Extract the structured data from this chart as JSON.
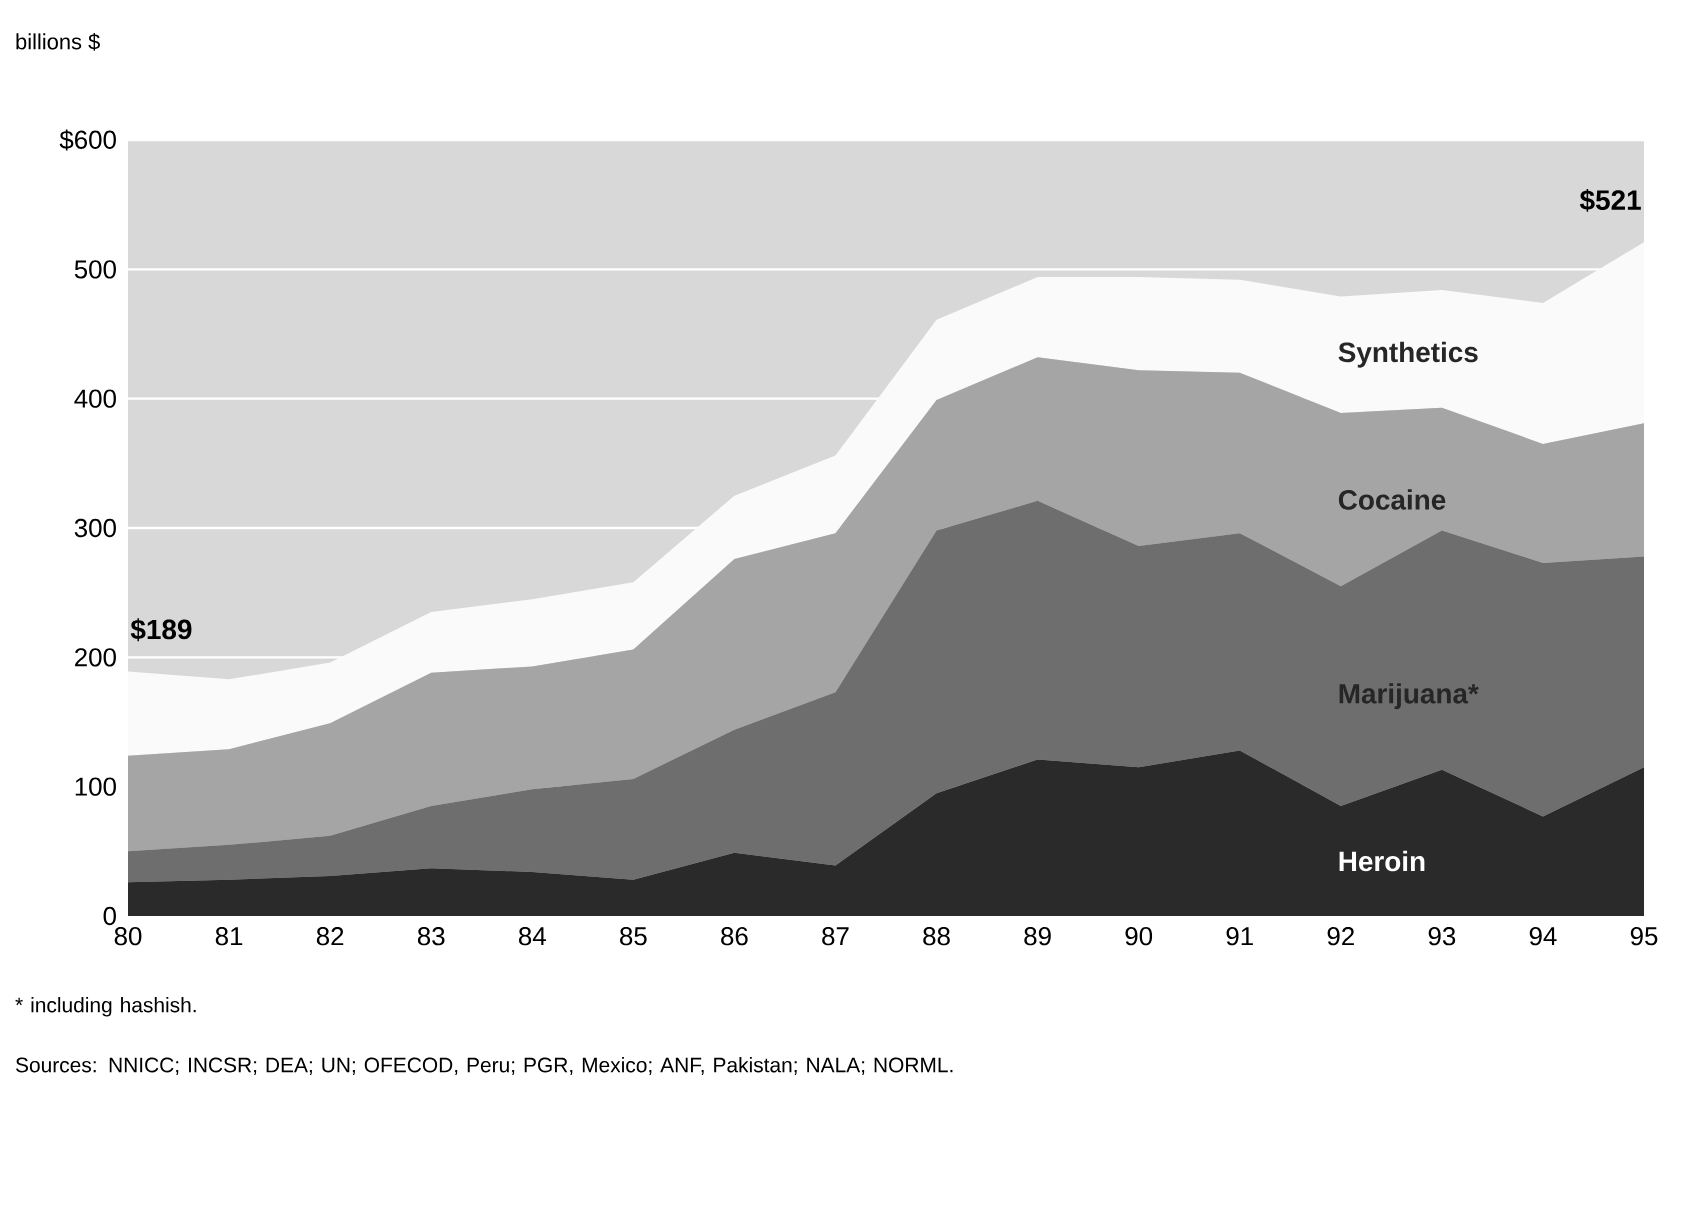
{
  "chart_data": {
    "type": "area",
    "stacked": true,
    "ylabel": "billions $",
    "categories": [
      "80",
      "81",
      "82",
      "83",
      "84",
      "85",
      "86",
      "87",
      "88",
      "89",
      "90",
      "91",
      "92",
      "93",
      "94",
      "95"
    ],
    "series": [
      {
        "name": "Heroin",
        "color": "#2a2a2a",
        "values": [
          26,
          28,
          31,
          37,
          34,
          28,
          49,
          39,
          95,
          121,
          115,
          128,
          85,
          113,
          77,
          115
        ]
      },
      {
        "name": "Marijuana*",
        "color": "#6e6e6e",
        "values": [
          24,
          27,
          31,
          48,
          64,
          78,
          95,
          134,
          203,
          200,
          171,
          168,
          170,
          185,
          196,
          163
        ]
      },
      {
        "name": "Cocaine",
        "color": "#a5a5a5",
        "values": [
          74,
          74,
          87,
          103,
          95,
          100,
          132,
          123,
          101,
          111,
          136,
          124,
          134,
          95,
          92,
          103
        ]
      },
      {
        "name": "Synthetics",
        "color": "#fafafa",
        "values": [
          65,
          54,
          47,
          47,
          52,
          52,
          49,
          60,
          62,
          62,
          72,
          72,
          90,
          91,
          109,
          140
        ]
      }
    ],
    "ylim": [
      0,
      600
    ],
    "yticks": [
      0,
      100,
      200,
      300,
      400,
      500,
      {
        "value": 600,
        "label": "$600"
      }
    ],
    "grid": "y",
    "annotations": [
      {
        "text": "$189",
        "x": "80",
        "y": 189
      },
      {
        "text": "$521",
        "x": "95",
        "y": 521
      },
      "* including hashish.",
      "Sources: NNICC; INCSR; DEA; UN; OFECOD, Peru; PGR, Mexico; ANF, Pakistan; NALA; NORML."
    ]
  }
}
